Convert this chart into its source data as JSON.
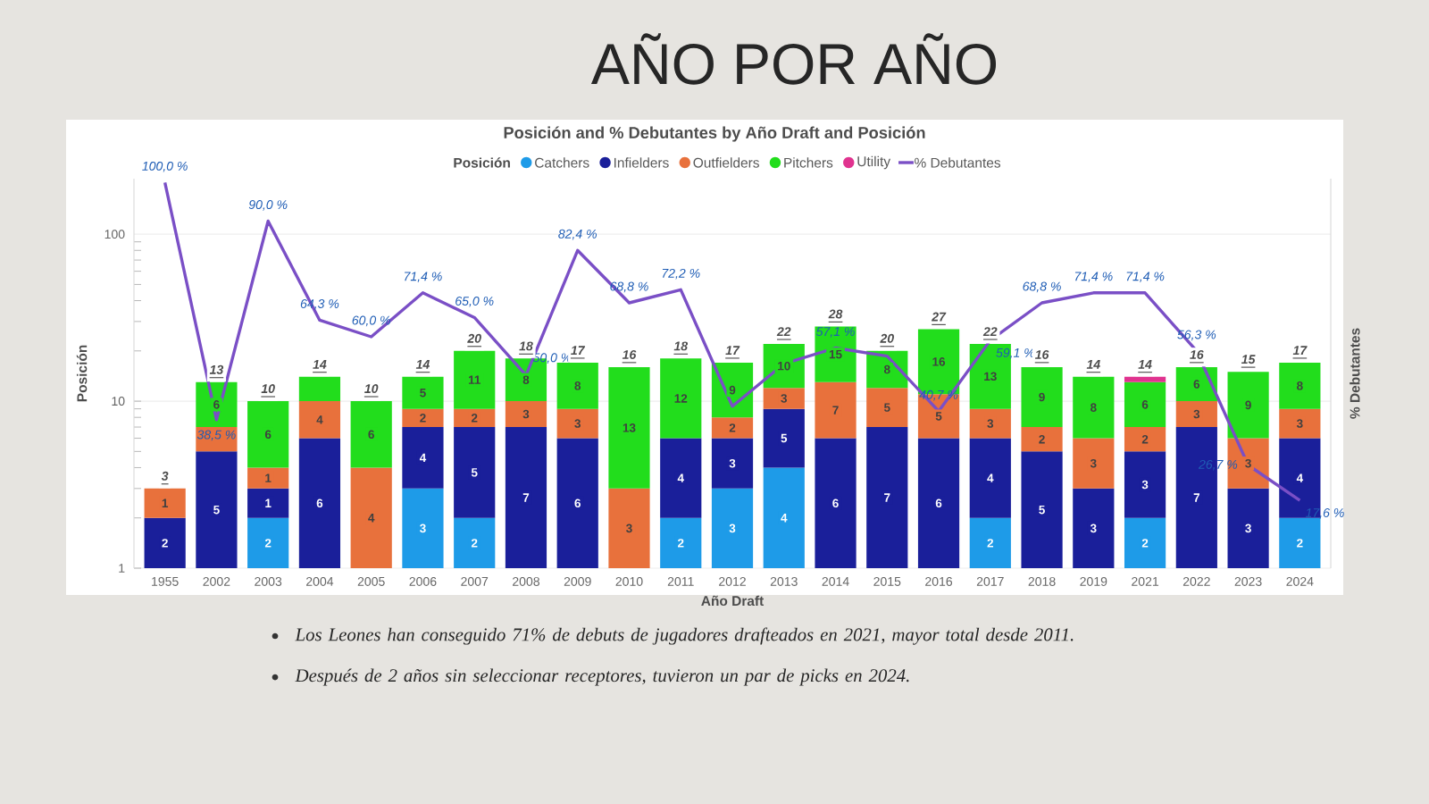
{
  "chart_data": {
    "type": "bar",
    "title": "AÑO POR AÑO",
    "subtitle": "Posición and % Debutantes by Año Draft and Posición",
    "xlabel": "Año Draft",
    "ylabel": "Posición",
    "y2label": "% Debutantes",
    "legend_title": "Posición",
    "categories": [
      "1955",
      "2002",
      "2003",
      "2004",
      "2005",
      "2006",
      "2007",
      "2008",
      "2009",
      "2010",
      "2011",
      "2012",
      "2013",
      "2014",
      "2015",
      "2016",
      "2017",
      "2018",
      "2019",
      "2021",
      "2022",
      "2023",
      "2024"
    ],
    "stacked": true,
    "log": "y",
    "ylim": [
      1,
      215
    ],
    "yticks": [
      1,
      10,
      100
    ],
    "y2lim": [
      0,
      101
    ],
    "tick_labels": [
      "x",
      "y"
    ],
    "grid": "y",
    "legend": "top",
    "series": [
      {
        "name": "Catchers",
        "color": "#1e9be8",
        "values": [
          null,
          null,
          2,
          null,
          null,
          3,
          2,
          null,
          null,
          null,
          2,
          3,
          4,
          null,
          null,
          null,
          2,
          null,
          null,
          2,
          null,
          null,
          2
        ],
        "value_labels": [
          null,
          null,
          "2",
          null,
          null,
          "3",
          "2",
          null,
          null,
          null,
          "2",
          "3",
          "4",
          null,
          null,
          null,
          "2",
          null,
          null,
          "2",
          null,
          null,
          "2"
        ]
      },
      {
        "name": "Infielders",
        "color": "#1a1f9a",
        "values": [
          2,
          5,
          1,
          6,
          null,
          4,
          5,
          7,
          6,
          null,
          4,
          3,
          5,
          6,
          7,
          6,
          4,
          5,
          3,
          3,
          7,
          3,
          4
        ],
        "value_labels": [
          "2",
          "5",
          "1",
          "6",
          null,
          "4",
          "5",
          "7",
          "6",
          null,
          "4",
          "3",
          "5",
          "6",
          "7",
          "6",
          "4",
          "5",
          "3",
          "3",
          "7",
          "3",
          "4"
        ]
      },
      {
        "name": "Outfielders",
        "color": "#e8713c",
        "values": [
          1,
          2,
          1,
          4,
          4,
          2,
          2,
          3,
          3,
          3,
          null,
          2,
          3,
          7,
          5,
          5,
          3,
          2,
          3,
          2,
          3,
          3,
          3
        ],
        "value_labels": [
          "1",
          null,
          "1",
          "4",
          "4",
          "2",
          "2",
          "3",
          "3",
          "3",
          null,
          "2",
          "3",
          "7",
          "5",
          "5",
          "3",
          "2",
          "3",
          "2",
          "3",
          "3",
          "3"
        ]
      },
      {
        "name": "Pitchers",
        "color": "#22dd1c",
        "values": [
          null,
          6,
          6,
          4,
          6,
          5,
          11,
          8,
          8,
          13,
          12,
          9,
          10,
          15,
          8,
          16,
          13,
          9,
          8,
          6,
          6,
          9,
          8
        ],
        "value_labels": [
          null,
          "6",
          "6",
          null,
          "6",
          "5",
          "11",
          "8",
          "8",
          "13",
          "12",
          "9",
          "10",
          "15",
          "8",
          "16",
          "13",
          "9",
          "8",
          "6",
          "6",
          "9",
          "8"
        ]
      },
      {
        "name": "Utility",
        "color": "#e0338f",
        "values": [
          null,
          null,
          null,
          null,
          null,
          null,
          null,
          null,
          null,
          null,
          null,
          null,
          null,
          null,
          null,
          null,
          null,
          null,
          null,
          1,
          null,
          null,
          null
        ]
      },
      {
        "name": "% Debutantes",
        "type": "line",
        "axis": "y2",
        "color": "#7a4fc6",
        "values": [
          100,
          38.5,
          90,
          64.3,
          60,
          71.4,
          65,
          50,
          82.4,
          68.8,
          72.2,
          42,
          53,
          57.1,
          55,
          40.7,
          59.1,
          68.8,
          71.4,
          71.4,
          56.3,
          26.7,
          17.6
        ],
        "value_labels": [
          "100,0 %",
          "38,5 %",
          "90,0 %",
          "64,3 %",
          "60,0 %",
          "71,4 %",
          "65,0 %",
          "50,0 %",
          "82,4 %",
          "68,8 %",
          "72,2 %",
          null,
          null,
          "57,1 %",
          null,
          "40,7 %",
          "59,1 %",
          "68,8 %",
          "71,4 %",
          "71,4 %",
          "56,3 %",
          "26,7 %",
          "17,6 %"
        ]
      }
    ],
    "totals": [
      "3",
      "13",
      "10",
      "14",
      "10",
      "14",
      "20",
      "18",
      "17",
      "16",
      "18",
      "17",
      "22",
      "28",
      "20",
      "27",
      "22",
      "16",
      "14",
      "14",
      "16",
      "15",
      "17"
    ],
    "annotations": [
      "Los Leones han conseguido 71% de debuts de jugadores drafteados en 2021, mayor total desde 2011.",
      "Después de 2 años sin seleccionar receptores, tuvieron un par de picks en 2024."
    ]
  }
}
